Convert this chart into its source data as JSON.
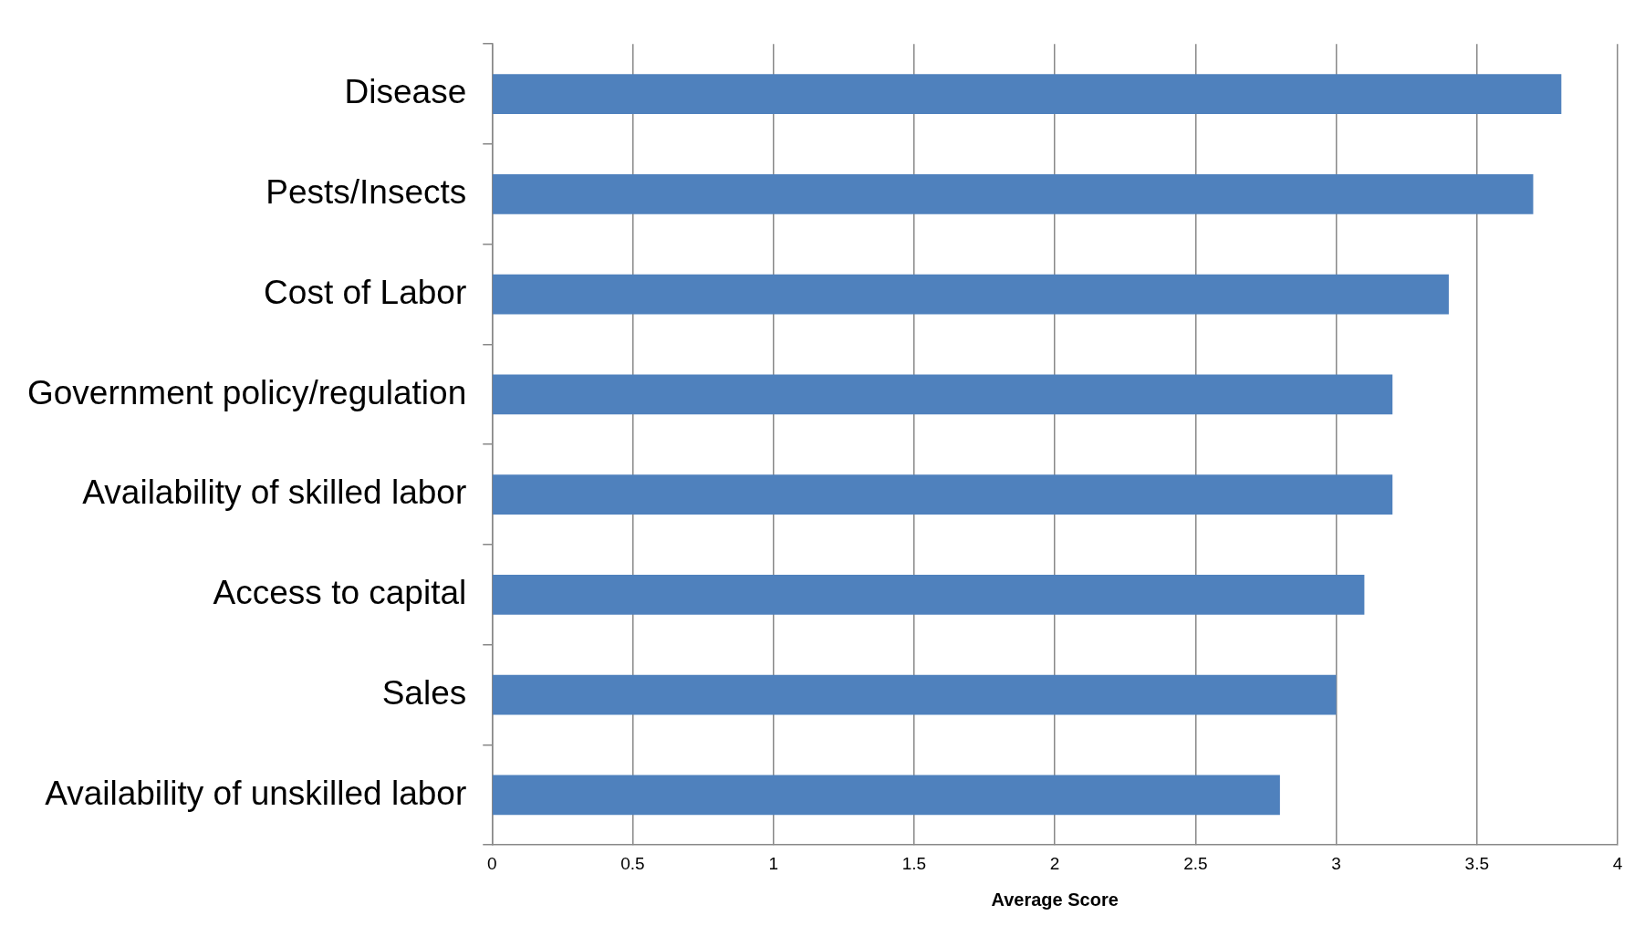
{
  "chart_data": {
    "type": "bar",
    "orientation": "horizontal",
    "xlabel": "Average Score",
    "categories": [
      "Disease",
      "Pests/Insects",
      "Cost of Labor",
      "Government policy/regulation",
      "Availability of skilled labor",
      "Access to capital",
      "Sales",
      "Availability of unskilled labor"
    ],
    "values": [
      3.8,
      3.7,
      3.4,
      3.2,
      3.2,
      3.1,
      3.0,
      2.8
    ],
    "color": "#4f81bd",
    "xlim": [
      0,
      4
    ],
    "xticks": [
      0,
      0.5,
      1,
      1.5,
      2,
      2.5,
      3,
      3.5,
      4
    ],
    "grid": "x",
    "legend": false
  }
}
